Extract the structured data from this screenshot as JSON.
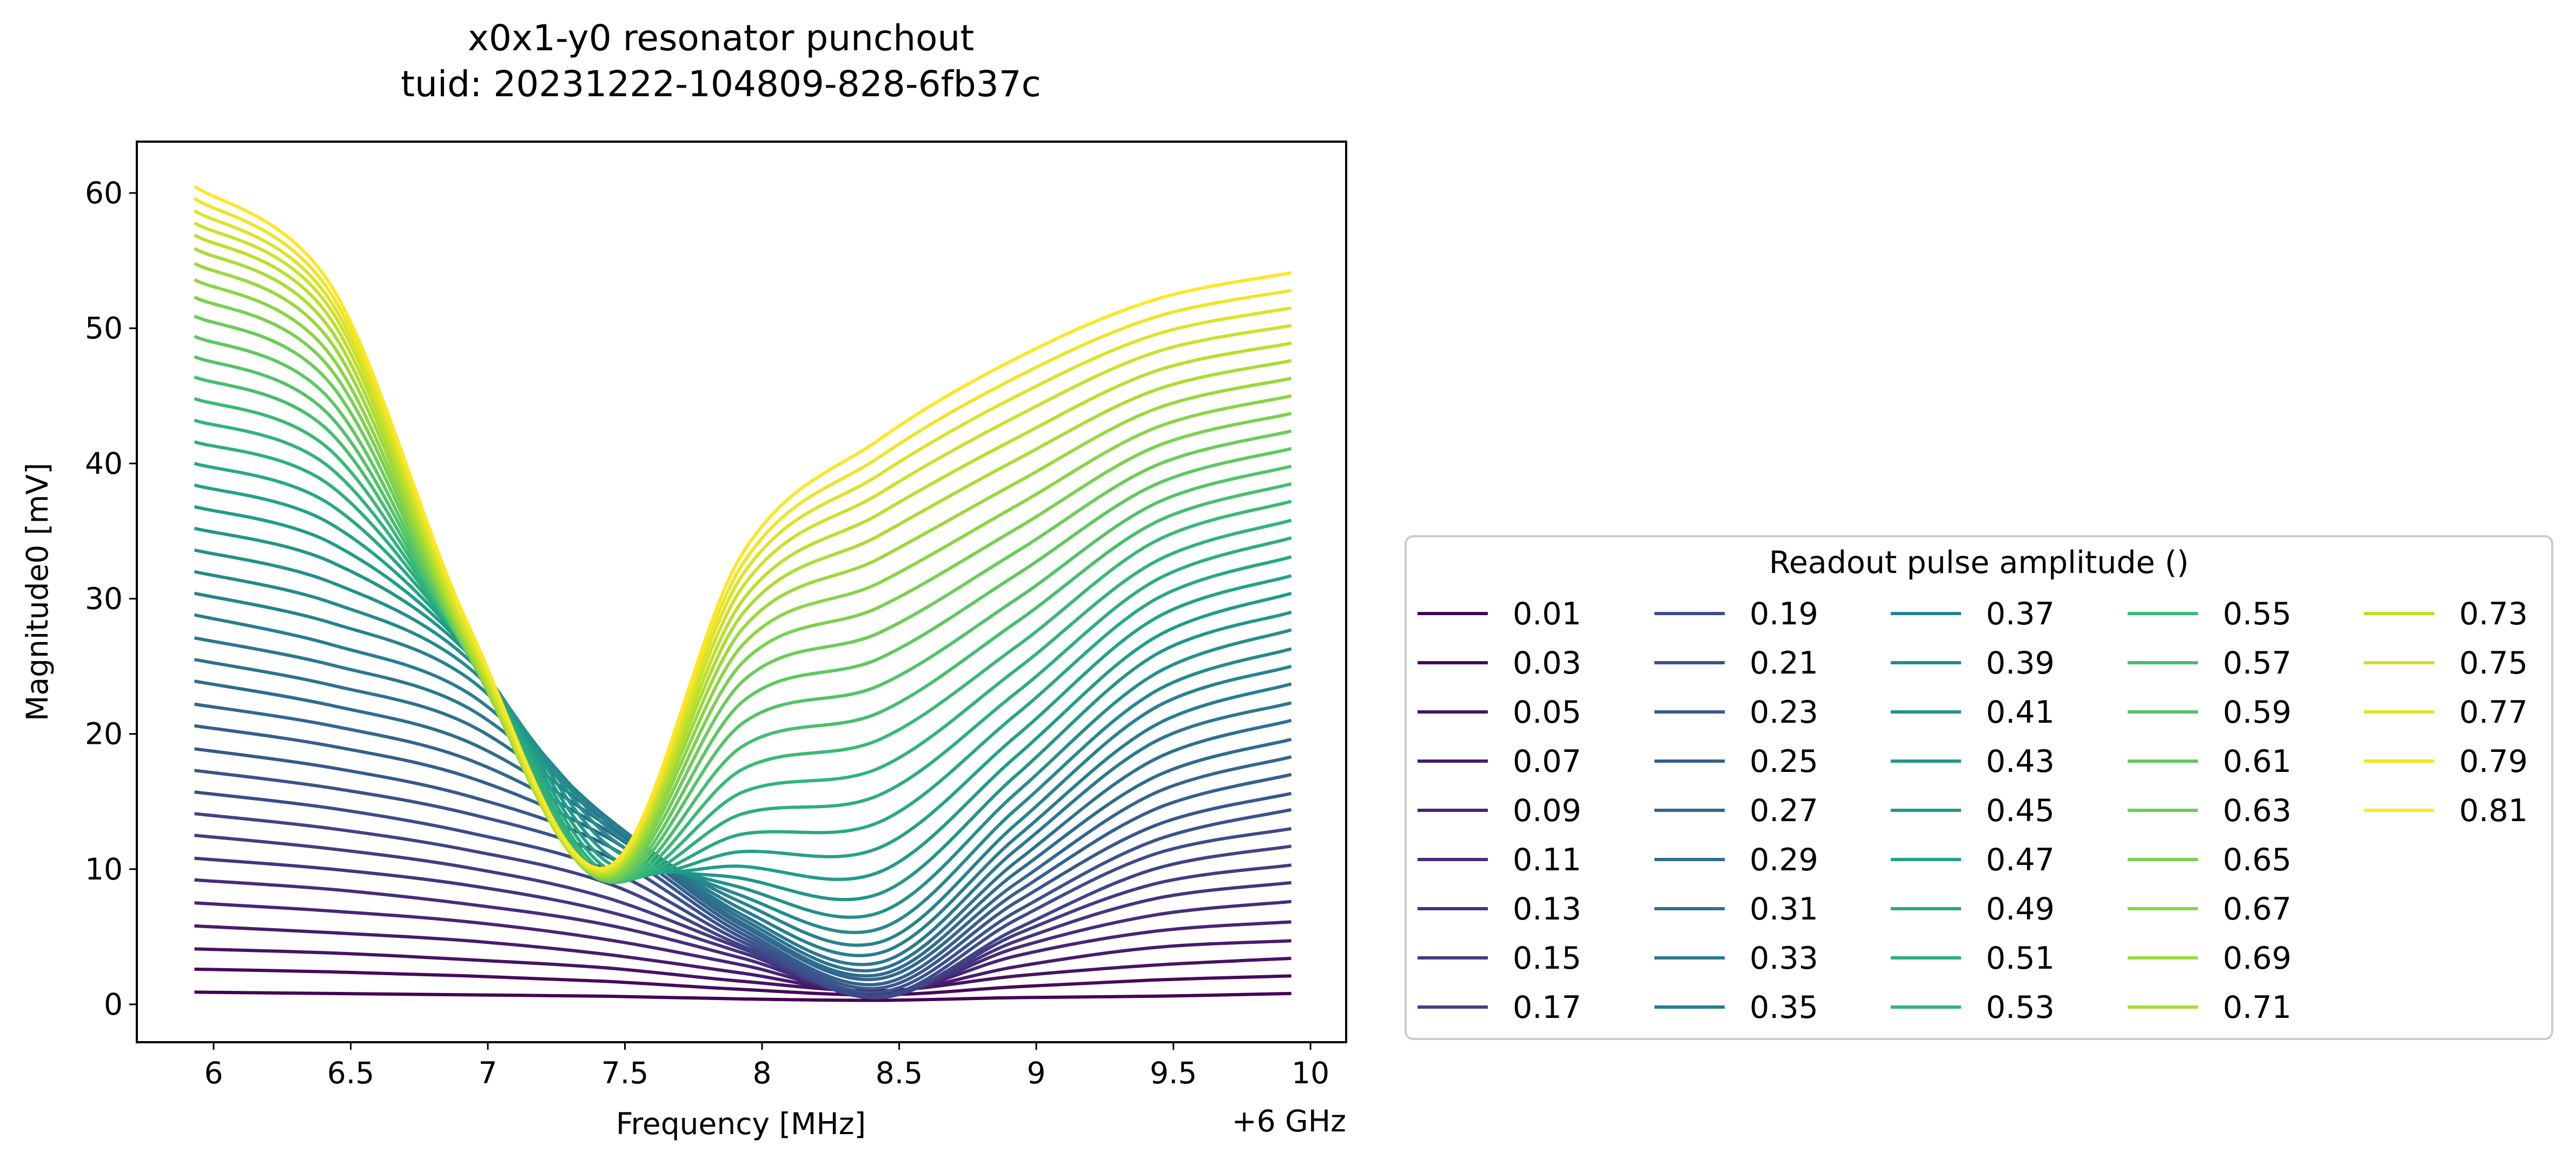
{
  "chart_data": {
    "type": "line",
    "title": "x0x1-y0 resonator punchout",
    "subtitle": "tuid: 20231222-104809-828-6fb37c",
    "xlabel": "Frequency [MHz]",
    "x_offset_label": "+6 GHz",
    "ylabel": "Magnitude0 [mV]",
    "xlim": [
      5.72,
      10.13
    ],
    "ylim": [
      -2.8,
      63.8
    ],
    "x_ticks": [
      6,
      6.5,
      7,
      7.5,
      8,
      8.5,
      9,
      9.5,
      10
    ],
    "x_tick_labels": [
      "6",
      "6.5",
      "7",
      "7.5",
      "8",
      "8.5",
      "9",
      "9.5",
      "10"
    ],
    "y_ticks": [
      0,
      10,
      20,
      30,
      40,
      50,
      60
    ],
    "y_tick_labels": [
      "0",
      "10",
      "20",
      "30",
      "40",
      "50",
      "60"
    ],
    "grid": false,
    "colormap": "viridis",
    "legend": {
      "title": "Readout pulse amplitude ()",
      "placement": "right, outside plot",
      "columns": 5
    },
    "x": [
      5.93,
      6.43,
      6.93,
      7.43,
      7.93,
      8.43,
      8.93,
      9.43,
      9.93
    ],
    "series": [
      {
        "name": "0.01",
        "values": [
          0.9,
          0.8,
          0.7,
          0.6,
          0.4,
          0.3,
          0.5,
          0.6,
          0.8
        ]
      },
      {
        "name": "0.03",
        "values": [
          2.6,
          2.4,
          2.1,
          1.7,
          1.1,
          0.7,
          1.3,
          1.8,
          2.1
        ]
      },
      {
        "name": "0.05",
        "values": [
          4.1,
          3.8,
          3.3,
          2.7,
          1.7,
          1.0,
          2.1,
          2.9,
          3.4
        ]
      },
      {
        "name": "0.07",
        "values": [
          5.8,
          5.3,
          4.7,
          3.7,
          2.3,
          0.9,
          2.8,
          4.2,
          4.7
        ]
      },
      {
        "name": "0.09",
        "values": [
          7.5,
          6.9,
          6.1,
          4.8,
          2.9,
          0.8,
          3.6,
          5.4,
          6.1
        ]
      },
      {
        "name": "0.11",
        "values": [
          9.2,
          8.5,
          7.4,
          5.9,
          3.4,
          0.7,
          4.2,
          6.6,
          7.6
        ]
      },
      {
        "name": "0.13",
        "values": [
          10.8,
          10.0,
          8.8,
          6.9,
          3.8,
          0.6,
          4.7,
          7.8,
          9.0
        ]
      },
      {
        "name": "0.15",
        "values": [
          12.5,
          11.5,
          10.1,
          7.9,
          4.1,
          0.5,
          5.2,
          8.9,
          10.3
        ]
      },
      {
        "name": "0.17",
        "values": [
          14.1,
          13.0,
          11.4,
          9.0,
          4.3,
          0.5,
          5.6,
          10.0,
          11.7
        ]
      },
      {
        "name": "0.19",
        "values": [
          15.7,
          14.5,
          12.7,
          10.0,
          4.6,
          0.6,
          6.3,
          11.1,
          13.0
        ]
      },
      {
        "name": "0.21",
        "values": [
          17.3,
          16.0,
          14.1,
          11.0,
          4.9,
          0.9,
          6.9,
          12.1,
          14.4
        ]
      },
      {
        "name": "0.23",
        "values": [
          18.9,
          17.5,
          15.4,
          11.8,
          5.2,
          1.2,
          7.6,
          13.2,
          15.6
        ]
      },
      {
        "name": "0.25",
        "values": [
          20.6,
          19.1,
          16.8,
          12.4,
          5.5,
          1.5,
          8.3,
          14.4,
          17.0
        ]
      },
      {
        "name": "0.27",
        "values": [
          22.2,
          20.6,
          18.1,
          12.9,
          5.8,
          1.9,
          9.0,
          15.6,
          18.3
        ]
      },
      {
        "name": "0.29",
        "values": [
          23.9,
          22.1,
          19.4,
          13.3,
          6.0,
          2.2,
          9.8,
          16.8,
          19.6
        ]
      },
      {
        "name": "0.31",
        "values": [
          25.5,
          23.6,
          20.7,
          13.6,
          6.3,
          2.6,
          10.6,
          18.1,
          21.0
        ]
      },
      {
        "name": "0.33",
        "values": [
          27.1,
          25.1,
          21.9,
          13.8,
          6.6,
          3.1,
          11.5,
          19.4,
          22.3
        ]
      },
      {
        "name": "0.35",
        "values": [
          28.8,
          26.6,
          23.0,
          13.9,
          7.0,
          3.8,
          12.4,
          20.6,
          23.7
        ]
      },
      {
        "name": "0.37",
        "values": [
          30.4,
          28.2,
          24.1,
          13.7,
          7.5,
          4.6,
          13.4,
          21.9,
          25.0
        ]
      },
      {
        "name": "0.39",
        "values": [
          32.0,
          29.7,
          24.9,
          13.2,
          8.0,
          5.6,
          14.5,
          23.1,
          26.3
        ]
      },
      {
        "name": "0.41",
        "values": [
          33.6,
          31.2,
          25.5,
          12.6,
          8.6,
          6.8,
          15.7,
          24.4,
          27.7
        ]
      },
      {
        "name": "0.43",
        "values": [
          35.2,
          32.7,
          25.9,
          11.9,
          9.3,
          8.2,
          17.0,
          25.8,
          29.0
        ]
      },
      {
        "name": "0.45",
        "values": [
          36.8,
          34.1,
          26.1,
          11.2,
          10.2,
          9.8,
          18.4,
          27.1,
          30.4
        ]
      },
      {
        "name": "0.47",
        "values": [
          38.4,
          35.5,
          26.2,
          10.6,
          11.3,
          11.6,
          19.9,
          28.5,
          31.7
        ]
      },
      {
        "name": "0.49",
        "values": [
          40.0,
          36.9,
          26.2,
          10.1,
          12.6,
          13.5,
          21.5,
          29.9,
          33.1
        ]
      },
      {
        "name": "0.51",
        "values": [
          41.6,
          38.3,
          26.1,
          9.7,
          14.1,
          15.5,
          23.1,
          31.3,
          34.5
        ]
      },
      {
        "name": "0.53",
        "values": [
          43.2,
          39.6,
          26.0,
          9.4,
          15.7,
          17.5,
          24.8,
          32.7,
          35.8
        ]
      },
      {
        "name": "0.55",
        "values": [
          44.8,
          40.9,
          25.9,
          9.2,
          17.4,
          19.6,
          26.5,
          34.2,
          37.2
        ]
      },
      {
        "name": "0.57",
        "values": [
          46.4,
          42.2,
          25.8,
          9.1,
          19.1,
          21.6,
          28.3,
          35.6,
          38.5
        ]
      },
      {
        "name": "0.59",
        "values": [
          47.9,
          43.4,
          25.8,
          9.1,
          20.8,
          23.6,
          30.0,
          37.0,
          39.8
        ]
      },
      {
        "name": "0.61",
        "values": [
          49.4,
          44.6,
          25.8,
          9.1,
          22.4,
          25.6,
          31.8,
          38.4,
          41.1
        ]
      },
      {
        "name": "0.63",
        "values": [
          50.9,
          45.8,
          25.9,
          9.2,
          23.9,
          27.5,
          33.5,
          39.8,
          42.4
        ]
      },
      {
        "name": "0.65",
        "values": [
          52.3,
          46.9,
          26.0,
          9.3,
          25.3,
          29.4,
          35.2,
          41.2,
          43.7
        ]
      },
      {
        "name": "0.67",
        "values": [
          53.6,
          47.9,
          26.1,
          9.4,
          26.6,
          31.2,
          36.9,
          42.6,
          45.0
        ]
      },
      {
        "name": "0.69",
        "values": [
          54.8,
          48.9,
          26.3,
          9.5,
          27.8,
          33.0,
          38.6,
          44.0,
          46.3
        ]
      },
      {
        "name": "0.71",
        "values": [
          55.9,
          49.8,
          26.5,
          9.6,
          28.9,
          34.7,
          40.3,
          45.4,
          47.6
        ]
      },
      {
        "name": "0.73",
        "values": [
          56.9,
          50.6,
          26.8,
          9.7,
          29.9,
          36.3,
          41.9,
          46.8,
          48.9
        ]
      },
      {
        "name": "0.75",
        "values": [
          57.8,
          51.3,
          27.1,
          9.8,
          30.9,
          37.8,
          43.5,
          48.2,
          50.2
        ]
      },
      {
        "name": "0.77",
        "values": [
          58.7,
          51.9,
          27.4,
          9.9,
          31.8,
          39.2,
          45.0,
          49.5,
          51.5
        ]
      },
      {
        "name": "0.79",
        "values": [
          59.6,
          52.5,
          27.7,
          10.0,
          32.6,
          40.5,
          46.4,
          50.8,
          52.8
        ]
      },
      {
        "name": "0.81",
        "values": [
          60.5,
          53.1,
          28.0,
          10.1,
          33.4,
          41.8,
          47.8,
          52.1,
          54.1
        ]
      }
    ]
  }
}
